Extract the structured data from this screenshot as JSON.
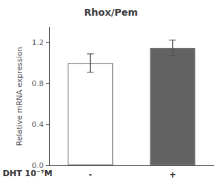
{
  "chart_data": {
    "type": "bar",
    "title": "Rhox/Pem",
    "ylabel": "Relative mRNA expression",
    "annotation": "DHT 10⁻⁷M",
    "categories": [
      "-",
      "+"
    ],
    "values": [
      1.0,
      1.15
    ],
    "errors": [
      0.09,
      0.075
    ],
    "colors": [
      "#ffffff",
      "#636363"
    ],
    "ylim": [
      0.0,
      1.35
    ],
    "yticks": [
      {
        "value": 0.0,
        "label": "0.0"
      },
      0.4,
      0.8,
      1.2
    ],
    "grid": false
  }
}
